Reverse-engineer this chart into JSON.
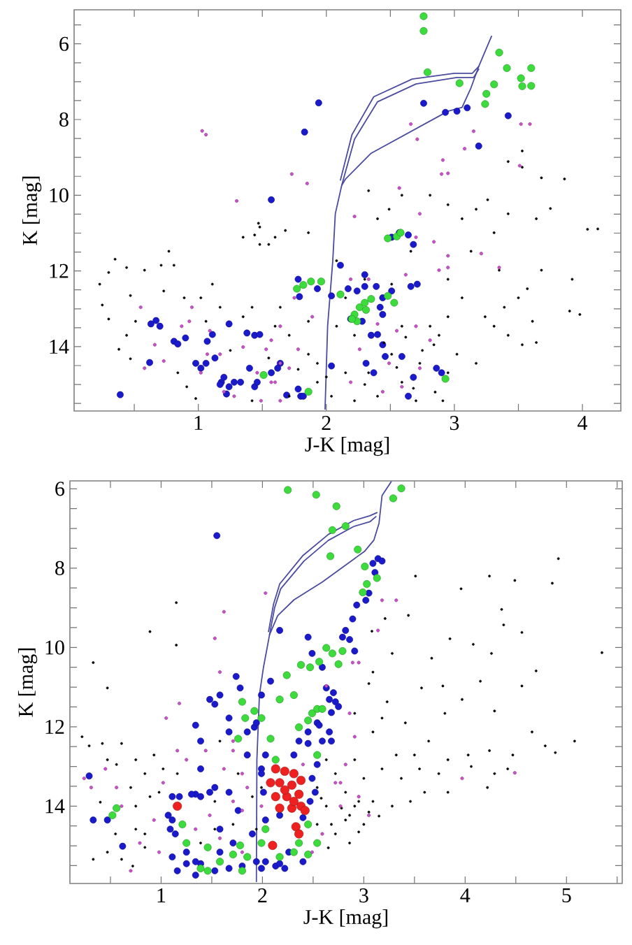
{
  "chart_data": [
    {
      "type": "scatter",
      "xlabel": "J-K [mag]",
      "ylabel": "K [mag]",
      "marker": "circle",
      "xlim": [
        0.03,
        4.3
      ],
      "ylim": [
        15.7,
        5.1
      ],
      "xticks": [
        {
          "value": 0.5,
          "label": null
        },
        1,
        {
          "value": 1.5,
          "label": null
        },
        2,
        {
          "value": 2.5,
          "label": null
        },
        3,
        {
          "value": 3.5,
          "label": null
        },
        4
      ],
      "yticks": [
        {
          "value": 5.5,
          "label": null
        },
        6,
        {
          "value": 6.5,
          "label": null
        },
        {
          "value": 7,
          "label": null
        },
        {
          "value": 7.5,
          "label": null
        },
        8,
        {
          "value": 8.5,
          "label": null
        },
        {
          "value": 9,
          "label": null
        },
        {
          "value": 9.5,
          "label": null
        },
        10,
        {
          "value": 10.5,
          "label": null
        },
        {
          "value": 11,
          "label": null
        },
        {
          "value": 11.5,
          "label": null
        },
        12,
        {
          "value": 12.5,
          "label": null
        },
        {
          "value": 13,
          "label": null
        },
        {
          "value": 13.5,
          "label": null
        },
        14,
        {
          "value": 14.5,
          "label": null
        },
        {
          "value": 15,
          "label": null
        },
        {
          "value": 15.5,
          "label": null
        }
      ],
      "series": [
        {
          "color": "#1a1acc",
          "x": [
            0.39,
            0.63,
            0.67,
            0.7,
            0.62,
            0.81,
            0.84,
            0.9,
            0.98,
            1.02,
            1.06,
            1.07,
            1.11,
            1.13,
            1.18,
            1.24,
            1.28,
            1.22,
            1.2,
            1.24,
            1.33,
            1.4,
            1.38,
            1.44,
            1.48,
            1.44,
            1.57,
            1.69,
            1.78,
            1.8,
            1.78,
            1.79,
            1.83,
            1.94,
            1.64,
            2.76,
            2.93,
            3.02,
            3.1,
            3.42,
            3.19,
            2.57,
            2.64,
            2.68,
            2.51,
            1.93,
            2.04,
            2.17,
            2.24,
            2.3,
            2.39,
            2.44,
            2.51,
            2.19,
            2.28,
            2.42,
            2.44,
            2.35,
            2.4,
            2.44,
            2.46,
            2.31,
            2.37,
            2.59,
            2.68,
            2.86,
            2.9,
            2.04,
            1.82,
            1.62,
            1.57,
            1.46,
            1.17,
            2.11,
            2.3,
            2.66,
            2.71,
            2.64
          ],
          "values": [
            15.27,
            13.4,
            13.31,
            13.46,
            14.42,
            13.86,
            13.93,
            13.77,
            14.44,
            14.57,
            14.44,
            13.86,
            13.68,
            14.3,
            14.94,
            15.06,
            14.94,
            15.25,
            14.81,
            13.4,
            14.94,
            14.57,
            13.64,
            13.7,
            13.68,
            15.06,
            10.12,
            15.28,
            15.12,
            15.31,
            12.22,
            12.68,
            8.33,
            7.56,
            14.44,
            7.57,
            7.81,
            7.78,
            7.69,
            7.9,
            8.7,
            10.99,
            11.05,
            11.3,
            11.11,
            12.47,
            12.66,
            12.47,
            12.53,
            12.41,
            12.41,
            12.71,
            12.53,
            13.27,
            13.33,
            12.96,
            13.15,
            13.7,
            13.68,
            13.95,
            14.26,
            14.44,
            14.69,
            14.26,
            14.81,
            14.57,
            14.69,
            14.51,
            15.31,
            14.57,
            14.69,
            14.94,
            15.0,
            11.85,
            12.1,
            12.41,
            12.35,
            15.31
          ]
        },
        {
          "color": "#3ddc3d",
          "x": [
            2.76,
            2.76,
            2.79,
            3.35,
            3.41,
            3.6,
            3.52,
            3.53,
            3.6,
            3.31,
            3.25,
            3.24,
            3.04,
            1.77,
            1.82,
            1.88,
            1.96,
            2.11,
            2.22,
            2.26,
            2.3,
            2.35,
            2.24,
            2.2,
            2.48,
            2.53,
            2.31,
            2.48,
            2.55,
            2.58,
            1.51,
            1.86,
            2.93
          ],
          "values": [
            5.27,
            5.66,
            6.75,
            6.23,
            6.64,
            6.64,
            6.91,
            7.12,
            7.11,
            7.07,
            7.32,
            7.59,
            7.04,
            12.47,
            12.37,
            12.28,
            12.28,
            12.62,
            13.15,
            12.96,
            12.84,
            12.74,
            13.33,
            13.27,
            12.66,
            12.84,
            13.03,
            11.14,
            11.09,
            10.99,
            14.75,
            15.19,
            14.85
          ]
        },
        {
          "color": "#000000",
          "x": [
            0.23,
            0.25,
            0.3,
            0.35,
            0.44,
            0.58,
            0.71,
            0.77,
            0.81,
            0.47,
            0.3,
            0.51,
            0.73,
            1.11,
            1.02,
            0.38,
            0.47,
            0.44,
            0.89,
            1.35,
            1.44,
            1.48,
            1.48,
            1.6,
            1.68,
            1.86,
            1.06,
            1.17,
            1.35,
            1.42,
            1.64,
            1.71,
            0.91,
            0.84,
            0.98,
            1.42,
            1.71,
            1.6,
            1.86,
            1.93,
            1.86,
            3.53,
            3.42,
            3.53,
            3.68,
            3.86,
            3.75,
            3.64,
            4.04,
            4.12,
            3.92,
            3.9,
            3.98,
            3.68,
            3.57,
            3.5,
            3.61,
            3.42,
            3.53,
            3.64,
            3.31,
            3.39,
            3.35,
            3.31,
            3.42,
            3.26,
            3.17,
            3.06,
            2.95,
            2.81,
            2.59,
            2.49,
            2.33,
            2.4,
            2.66,
            3.13,
            2.95,
            3.06,
            3.24,
            2.95,
            2.81,
            2.84,
            3.02,
            3.17,
            2.73,
            2.95,
            2.59,
            2.4,
            2.22,
            2.15,
            2.22,
            2.08,
            2.15,
            2.3,
            2.08,
            2.51,
            2.59,
            2.51,
            2.33,
            2.04,
            1.93,
            2.7,
            2.91,
            1.47,
            1.55,
            2.45,
            2.62,
            2.75,
            2.88,
            2.55,
            2.68,
            2.85,
            2.3,
            2.0,
            1.78,
            1.55,
            1.25
          ],
          "values": [
            12.35,
            12.9,
            12.04,
            11.69,
            11.91,
            11.98,
            11.85,
            11.48,
            11.85,
            12.65,
            13.27,
            13.33,
            12.53,
            12.35,
            12.71,
            14.07,
            14.32,
            13.7,
            12.71,
            11.11,
            11.05,
            10.84,
            11.3,
            11.11,
            10.93,
            10.99,
            13.33,
            12.96,
            13.21,
            12.96,
            12.96,
            13.7,
            15.06,
            14.69,
            15.37,
            15.43,
            15.31,
            13.46,
            14.2,
            14.94,
            13.33,
            8.83,
            9.11,
            9.26,
            9.54,
            9.57,
            10.35,
            10.62,
            10.9,
            10.89,
            12.22,
            13.06,
            13.15,
            11.98,
            12.47,
            12.71,
            13.33,
            13.7,
            13.95,
            13.89,
            13.46,
            12.96,
            11.98,
            10.99,
            10.49,
            10.12,
            10.37,
            10.62,
            10.25,
            10.0,
            10.0,
            10.37,
            9.88,
            10.62,
            11.48,
            11.48,
            12.22,
            12.71,
            13.21,
            13.21,
            13.46,
            13.95,
            14.2,
            14.44,
            14.44,
            14.69,
            14.94,
            15.31,
            15.43,
            14.69,
            13.7,
            13.46,
            12.71,
            12.22,
            11.73,
            12.35,
            13.46,
            14.2,
            14.69,
            15.31,
            14.44,
            15.43,
            15.43,
            10.74,
            11.3,
            13.9,
            13.75,
            14.1,
            13.7,
            14.55,
            15.1,
            15.2,
            15.0,
            14.8,
            14.6,
            14.3,
            14.1
          ]
        },
        {
          "color": "#cc4fcc",
          "x": [
            1.03,
            1.06,
            1.3,
            1.73,
            1.85,
            2.66,
            2.71,
            3.15,
            3.08,
            2.91,
            2.95,
            2.9,
            3.52,
            3.59,
            2.57,
            2.22,
            3.51,
            2.73,
            2.84,
            3.35,
            3.21,
            2.95,
            2.7,
            0.55,
            0.66,
            0.58,
            0.73,
            0.87,
            0.93,
            0.95,
            1.07,
            1.17,
            1.2,
            1.35,
            1.46,
            1.57,
            1.6,
            1.64,
            1.71,
            1.49,
            1.28,
            1.02,
            1.75,
            1.64,
            2.19,
            2.33,
            2.62,
            2.88,
            2.7,
            2.55,
            2.81,
            2.26,
            2.49,
            2.73,
            2.19,
            2.44,
            1.64,
            1.53,
            1.78,
            1.09,
            1.57,
            1.89,
            2.4,
            2.95,
            2.59
          ],
          "values": [
            8.3,
            8.4,
            10.15,
            9.44,
            9.69,
            8.12,
            8.52,
            8.31,
            8.77,
            9.07,
            9.42,
            9.44,
            8.12,
            8.12,
            9.81,
            10.56,
            9.22,
            10.49,
            11.23,
            11.91,
            11.54,
            11.91,
            11.11,
            12.96,
            13.95,
            14.57,
            14.38,
            13.46,
            13.33,
            12.96,
            14.2,
            14.2,
            15.19,
            14.01,
            14.69,
            13.83,
            14.94,
            15.43,
            14.57,
            15.43,
            15.31,
            14.69,
            12.71,
            13.46,
            12.22,
            12.22,
            12.1,
            11.98,
            13.46,
            13.58,
            13.83,
            14.07,
            14.44,
            14.57,
            14.94,
            15.19,
            14.44,
            14.07,
            14.07,
            13.58,
            14.94,
            13.21,
            13.4,
            11.6,
            15.06
          ]
        },
        {
          "type": "line",
          "marker": "none",
          "color": "#4b4ba0",
          "x": [
            1.99,
            2.01,
            2.05,
            2.07,
            2.12,
            2.15,
            2.35,
            2.95,
            3.06,
            3.13,
            3.19,
            3.29
          ],
          "values": [
            15.65,
            13.46,
            11.74,
            10.49,
            9.74,
            9.57,
            8.89,
            7.78,
            7.68,
            7.16,
            6.6,
            5.8
          ]
        },
        {
          "type": "line",
          "marker": "none",
          "color": "#4b4ba0",
          "x": [
            2.12,
            2.22,
            2.4,
            2.7,
            3.02,
            3.15,
            3.19
          ],
          "values": [
            9.74,
            8.52,
            7.53,
            7.06,
            6.89,
            6.89,
            6.67
          ]
        },
        {
          "type": "line",
          "marker": "none",
          "color": "#4b4ba0",
          "x": [
            2.11,
            2.2,
            2.37,
            2.67,
            3.0,
            3.14,
            3.19
          ],
          "values": [
            9.6,
            8.4,
            7.4,
            6.93,
            6.78,
            6.78,
            6.6
          ]
        }
      ]
    },
    {
      "type": "scatter",
      "xlabel": "J-K [mag]",
      "ylabel": "K [mag]",
      "marker": "circle",
      "xlim": [
        0.1,
        5.55
      ],
      "ylim": [
        15.95,
        5.8
      ],
      "xticks": [
        {
          "value": 0.5,
          "label": null
        },
        1,
        {
          "value": 1.5,
          "label": null
        },
        2,
        {
          "value": 2.5,
          "label": null
        },
        3,
        {
          "value": 3.5,
          "label": null
        },
        4,
        {
          "value": 4.5,
          "label": null
        },
        5,
        {
          "value": 5.5,
          "label": null
        }
      ],
      "yticks": [
        6,
        {
          "value": 6.5,
          "label": null
        },
        {
          "value": 7,
          "label": null
        },
        {
          "value": 7.5,
          "label": null
        },
        8,
        {
          "value": 8.5,
          "label": null
        },
        {
          "value": 9,
          "label": null
        },
        {
          "value": 9.5,
          "label": null
        },
        10,
        {
          "value": 10.5,
          "label": null
        },
        {
          "value": 11,
          "label": null
        },
        {
          "value": 11.5,
          "label": null
        },
        12,
        {
          "value": 12.5,
          "label": null
        },
        {
          "value": 13,
          "label": null
        },
        {
          "value": 13.5,
          "label": null
        },
        14,
        {
          "value": 14.5,
          "label": null
        },
        {
          "value": 15,
          "label": null
        },
        {
          "value": 15.5,
          "label": null
        }
      ],
      "series": [
        {
          "color": "#1a1acc",
          "x": [
            1.55,
            0.29,
            0.33,
            0.62,
            1.11,
            1.14,
            1.25,
            1.39,
            1.53,
            1.11,
            1.34,
            1.48,
            1.39,
            1.53,
            1.67,
            1.48,
            1.74,
            1.78,
            2.17,
            2.08,
            1.99,
            1.34,
            1.39,
            1.67,
            1.92,
            1.85,
            1.99,
            1.58,
            1.71,
            1.9,
            2.03,
            2.17,
            1.16,
            1.34,
            1.99,
            2.13,
            2.22,
            2.4,
            2.36,
            2.45,
            2.54,
            2.59,
            2.45,
            2.49,
            2.59,
            3.09,
            3.14,
            3.18,
            3.11,
            3.05,
            3.02,
            2.93,
            2.89,
            2.82,
            2.79,
            2.86,
            2.91,
            2.63,
            2.7,
            2.72,
            2.66,
            2.75,
            2.68,
            2.56,
            2.66,
            2.68,
            2.54,
            2.49,
            2.52,
            2.47,
            2.4,
            2.26,
            2.17,
            2.03,
            2.03,
            1.99,
            2.01,
            1.07,
            1.09,
            1.18,
            1.3,
            1.39,
            1.53,
            1.67,
            1.76,
            1.58,
            1.34,
            1.25,
            1.11,
            1.67,
            1.8,
            1.94,
            1.58,
            1.85,
            1.94,
            2.31,
            2.45,
            0.47
          ],
          "values": [
            7.18,
            13.24,
            14.35,
            15.01,
            14.35,
            14.7,
            15.16,
            15.45,
            15.63,
            13.76,
            13.7,
            13.65,
            13.06,
            11.43,
            11.78,
            11.31,
            10.73,
            11.02,
            9.57,
            10.85,
            11.2,
            11.96,
            12.36,
            12.13,
            12.01,
            12.71,
            13.06,
            15.16,
            14.93,
            14.7,
            14.35,
            14.23,
            15.63,
            15.74,
            15.57,
            15.51,
            15.57,
            15.4,
            12.36,
            12.13,
            11.9,
            12.36,
            9.74,
            10.15,
            10.5,
            7.88,
            7.76,
            7.82,
            8.11,
            8.63,
            8.81,
            8.93,
            9.28,
            9.57,
            9.74,
            9.8,
            10.09,
            11.02,
            11.14,
            11.37,
            11.31,
            11.49,
            11.64,
            11.96,
            12.13,
            12.36,
            12.95,
            13.3,
            13.65,
            13.88,
            14.29,
            15.16,
            15.45,
            15.4,
            12.71,
            13.18,
            13.65,
            14.23,
            14.58,
            13.76,
            13.7,
            13.76,
            13.53,
            13.65,
            14.11,
            14.58,
            15.4,
            15.45,
            15.28,
            15.57,
            15.51,
            15.4,
            11.2,
            12.13,
            11.9,
            12.71,
            12.42,
            14.35
          ]
        },
        {
          "color": "#3ddc3d",
          "x": [
            2.25,
            2.53,
            2.73,
            3.29,
            3.37,
            2.69,
            2.82,
            2.67,
            2.94,
            3.01,
            3.13,
            3.03,
            2.99,
            2.63,
            2.69,
            2.75,
            2.79,
            2.56,
            2.47,
            2.49,
            2.54,
            2.45,
            2.24,
            2.38,
            1.8,
            1.92,
            2.17,
            2.31,
            1.76,
            1.99,
            2.36,
            2.13,
            2.54,
            2.45,
            2.36,
            1.21,
            0.52,
            0.56,
            1.99,
            1.85,
            1.71,
            1.58,
            1.39,
            1.46,
            1.25,
            2.17,
            2.45,
            2.54,
            1.8,
            1.46,
            1.78,
            2.03,
            2.31,
            2.59,
            2.08,
            1.83
          ],
          "values": [
            6.03,
            6.15,
            6.44,
            6.24,
            5.99,
            7.04,
            6.94,
            7.7,
            7.53,
            7.96,
            8.25,
            8.4,
            8.61,
            10.01,
            10.15,
            10.42,
            10.09,
            10.36,
            10.5,
            11.66,
            11.55,
            11.84,
            10.7,
            10.44,
            11.37,
            11.6,
            11.31,
            11.2,
            12.3,
            11.78,
            12.01,
            12.83,
            12.71,
            14.46,
            14.93,
            14.46,
            14.23,
            14.05,
            14.93,
            15.28,
            15.22,
            15.4,
            15.57,
            15.63,
            14.93,
            15.28,
            15.22,
            14.93,
            15.63,
            15.04,
            14.99,
            14.58,
            15.16,
            11.55,
            12.3,
            11.78
          ]
        },
        {
          "color": "#ee2020",
          "x": [
            2.13,
            2.22,
            2.31,
            2.17,
            2.29,
            2.38,
            2.13,
            2.24,
            2.36,
            2.17,
            2.29,
            2.38,
            2.42,
            2.33,
            2.36,
            2.1,
            1.16,
            2.22,
            2.31,
            2.08
          ],
          "values": [
            13.06,
            13.12,
            13.18,
            13.41,
            13.47,
            13.35,
            13.76,
            13.76,
            13.7,
            14.05,
            14.05,
            14.0,
            14.11,
            14.52,
            14.7,
            14.99,
            14.0,
            13.59,
            13.88,
            13.41
          ]
        },
        {
          "color": "#000000",
          "x": [
            0.33,
            0.47,
            0.89,
            1.15,
            1.15,
            0.22,
            0.29,
            0.42,
            0.61,
            0.75,
            0.93,
            0.47,
            0.7,
            0.84,
            1.02,
            1.16,
            0.75,
            0.89,
            0.75,
            0.84,
            0.61,
            0.72,
            0.47,
            0.33,
            1.39,
            1.53,
            1.71,
            1.53,
            1.76,
            1.58,
            1.9,
            1.99,
            1.94,
            0.56,
            0.98,
            3.51,
            3.96,
            4.24,
            4.49,
            4.86,
            4.92,
            4.36,
            4.38,
            3.44,
            3.21,
            3.08,
            3.85,
            4.08,
            4.26,
            4.56,
            5.35,
            4.7,
            4.56,
            4.15,
            3.67,
            3.28,
            3.09,
            3.57,
            3.78,
            3.97,
            4.29,
            3.41,
            3.8,
            3.23,
            3.05,
            4.66,
            5.08,
            4.89,
            4.79,
            4.47,
            4.24,
            4.03,
            3.83,
            3.64,
            3.5,
            3.32,
            3.09,
            2.91,
            3.0,
            3.18,
            3.37,
            3.55,
            3.74,
            4.06,
            4.29,
            4.42,
            4.22,
            3.83,
            3.6,
            3.46,
            3.28,
            3.09,
            2.91,
            2.82,
            3.0,
            2.72,
            2.86,
            2.63,
            2.54,
            2.72,
            2.63,
            2.54,
            2.91,
            3.18,
            2.82,
            2.86,
            2.68,
            2.95,
            0.84,
            2.78,
            3.05,
            2.95,
            2.65,
            3.15,
            2.58,
            0.4,
            0.55
          ],
          "values": [
            10.38,
            11.02,
            9.6,
            8.87,
            9.94,
            12.25,
            12.48,
            12.42,
            12.42,
            12.83,
            12.71,
            12.83,
            13.53,
            13.18,
            13.06,
            13.18,
            14.0,
            13.76,
            14.58,
            15.04,
            15.34,
            15.51,
            15.16,
            15.34,
            14.93,
            14.58,
            14.46,
            13.88,
            13.18,
            12.36,
            13.76,
            13.53,
            14.58,
            12.95,
            13.65,
            8.2,
            8.52,
            8.2,
            8.31,
            8.38,
            7.76,
            9.04,
            9.43,
            9.19,
            9.27,
            9.59,
            9.78,
            9.92,
            10.15,
            9.62,
            10.13,
            10.59,
            10.97,
            10.85,
            10.27,
            10.15,
            10.62,
            11.02,
            10.97,
            11.31,
            11.6,
            11.9,
            11.66,
            11.37,
            10.91,
            12.13,
            12.36,
            12.65,
            12.48,
            12.71,
            12.6,
            12.71,
            12.83,
            12.36,
            12.71,
            12.71,
            12.13,
            12.83,
            13.3,
            13.06,
            13.3,
            13.06,
            13.18,
            13.0,
            13.18,
            13.06,
            13.53,
            13.65,
            13.65,
            13.88,
            14.0,
            13.88,
            14.0,
            14.35,
            14.46,
            14.7,
            14.93,
            14.0,
            13.53,
            13.18,
            12.83,
            14.46,
            11.66,
            11.78,
            13.65,
            14.23,
            14.46,
            13.88,
            14.7,
            14.05,
            14.15,
            14.65,
            15.05,
            14.25,
            13.8,
            13.9,
            14.7
          ]
        },
        {
          "color": "#cc4fcc",
          "x": [
            1.53,
            2.03,
            1.62,
            1.05,
            1.18,
            1.58,
            0.24,
            0.31,
            0.45,
            0.56,
            0.61,
            0.79,
            0.93,
            0.98,
            0.7,
            1.34,
            1.48,
            1.71,
            1.62,
            1.85,
            1.99,
            1.25,
            1.44,
            1.71,
            1.02,
            1.16,
            1.8,
            1.58,
            3.18,
            3.32,
            3.14,
            2.89,
            2.95,
            2.63,
            2.86,
            2.91,
            2.82,
            2.77,
            2.95,
            3.97,
            4.49,
            2.59,
            2.49,
            3.05,
            1.71,
            1.8,
            2.72,
            2.77,
            2.4,
            1.8
          ],
          "values": [
            9.77,
            8.63,
            9.1,
            11.78,
            11.41,
            10.62,
            13.3,
            13.53,
            13.06,
            13.53,
            14.0,
            14.93,
            14.35,
            15.16,
            15.63,
            14.58,
            14.23,
            13.88,
            13.06,
            13.53,
            14.0,
            12.83,
            12.6,
            12.36,
            13.41,
            12.6,
            15.16,
            14.81,
            8.81,
            8.81,
            9.57,
            10.38,
            10.38,
            10.97,
            11.66,
            12.25,
            12.95,
            13.41,
            13.76,
            13.3,
            13.16,
            14.7,
            15.16,
            14.23,
            12.6,
            13.18,
            13.41,
            14.0,
            12.95,
            14.11
          ]
        },
        {
          "type": "line",
          "marker": "none",
          "color": "#4b4ba0",
          "x": [
            1.94,
            1.945,
            1.97,
            2.01,
            2.07,
            2.15,
            2.31,
            2.59,
            3.01,
            3.1,
            3.15,
            3.18,
            3.27
          ],
          "values": [
            15.9,
            12.83,
            11.2,
            10.5,
            9.68,
            9.2,
            8.8,
            8.35,
            7.57,
            7.29,
            6.87,
            6.17,
            5.82
          ]
        },
        {
          "type": "line",
          "marker": "none",
          "color": "#4b4ba0",
          "x": [
            2.07,
            2.12,
            2.18,
            2.41,
            2.65,
            2.9,
            3.06,
            3.12
          ],
          "values": [
            9.68,
            9.0,
            8.52,
            7.82,
            7.3,
            6.95,
            6.83,
            6.7
          ]
        },
        {
          "type": "line",
          "marker": "none",
          "color": "#4b4ba0",
          "x": [
            2.06,
            2.11,
            2.17,
            2.4,
            2.65,
            2.9,
            3.06,
            3.13
          ],
          "values": [
            9.6,
            8.9,
            8.4,
            7.68,
            7.15,
            6.8,
            6.68,
            6.6
          ]
        }
      ]
    }
  ]
}
